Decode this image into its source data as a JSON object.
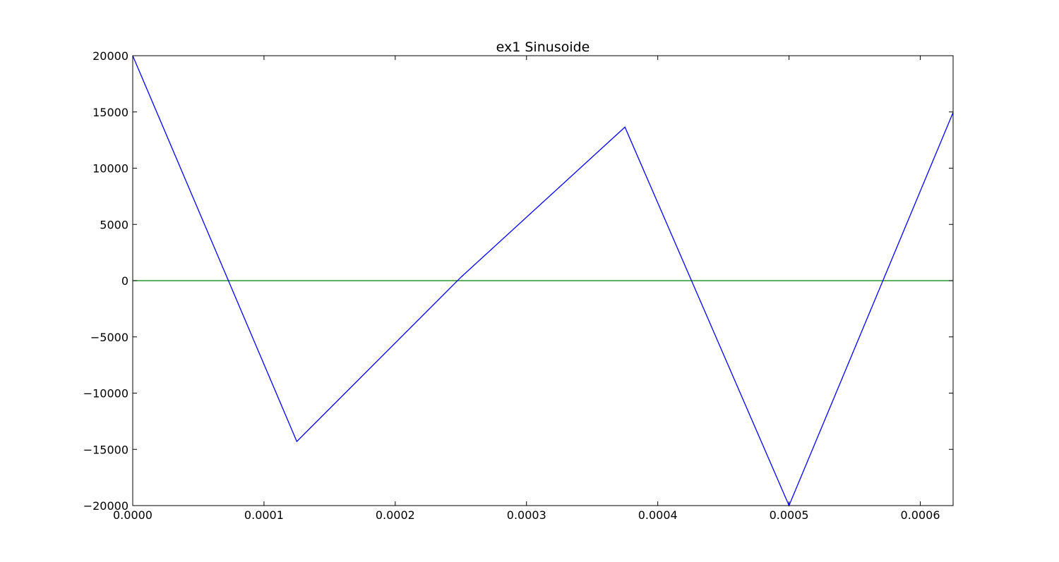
{
  "chart_data": {
    "type": "line",
    "title": "ex1 Sinusoide",
    "xlabel": "",
    "ylabel": "",
    "xlim": [
      0,
      0.000625
    ],
    "ylim": [
      -20000,
      20000
    ],
    "grid": false,
    "x_ticks": [
      0,
      0.0001,
      0.0002,
      0.0003,
      0.0004,
      0.0005,
      0.0006
    ],
    "x_tick_labels": [
      "0.0000",
      "0.0001",
      "0.0002",
      "0.0003",
      "0.0004",
      "0.0005",
      "0.0006"
    ],
    "y_ticks": [
      20000,
      15000,
      10000,
      5000,
      0,
      -5000,
      -10000,
      -15000,
      -20000
    ],
    "y_tick_labels": [
      "20000",
      "15000",
      "10000",
      "5000",
      "0",
      "−5000",
      "−10000",
      "−15000",
      "−20000"
    ],
    "series": [
      {
        "color": "#0000ff",
        "x": [
          0,
          0.000125,
          0.00025,
          0.000375,
          0.0005,
          0.000625
        ],
        "values": [
          20000,
          -14300,
          300,
          13650,
          -20000,
          14950
        ]
      },
      {
        "color": "#008000",
        "x": [
          0,
          0.000625
        ],
        "values": [
          0,
          0
        ]
      }
    ]
  }
}
